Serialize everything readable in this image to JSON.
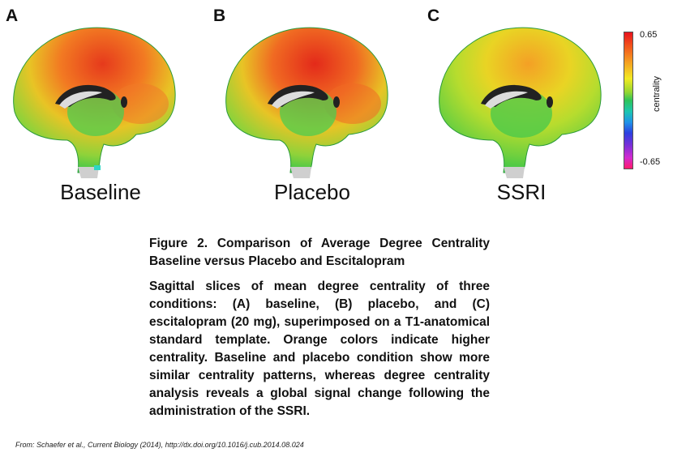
{
  "panels": [
    {
      "letter": "A",
      "condition": "Baseline"
    },
    {
      "letter": "B",
      "condition": "Placebo"
    },
    {
      "letter": "C",
      "condition": "SSRI"
    }
  ],
  "colorbar": {
    "max_label": "0.65",
    "min_label": "-0.65",
    "label": "centrality"
  },
  "caption": {
    "title": "Figure 2. Comparison of Average Degree Centrality Baseline versus Placebo and Escitalopram",
    "body": "Sagittal slices of mean degree centrality of three conditions: (A) baseline, (B) placebo, and (C) escitalopram (20 mg), superimposed on a T1-anatomical standard template. Orange colors indicate higher centrality. Baseline and placebo condition show more similar centrality patterns, whereas degree centrality analysis reveals a global signal change following the administration of the SSRI."
  },
  "source": "From: Schaefer et al., Current Biology (2014), http://dx.doi.org/10.1016/j.cub.2014.08.024"
}
